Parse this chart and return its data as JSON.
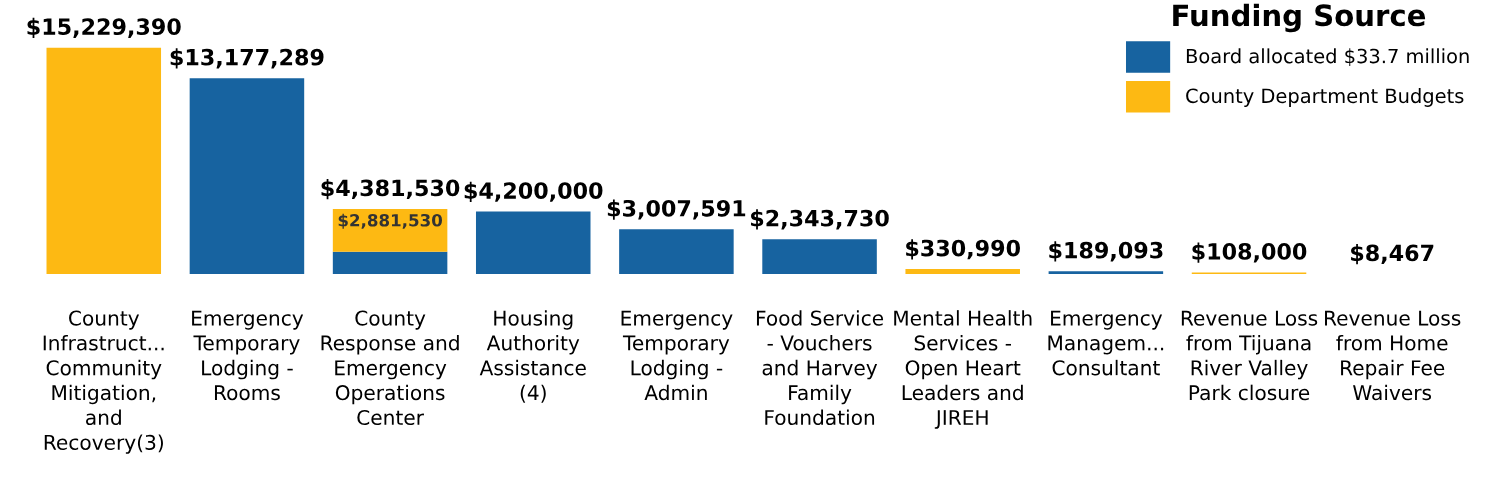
{
  "chart_data": {
    "type": "bar",
    "stacked": true,
    "legend": "top right",
    "legend_title": "Funding Source",
    "grid": false,
    "categories": [
      "County Infrastruct... Community Mitigation, and Recovery(3)",
      "Emergency Temporary Lodging - Rooms",
      "County Response and Emergency Operations Center",
      "Housing Authority Assistance (4)",
      "Emergency Temporary Lodging - Admin",
      "Food Service - Vouchers and Harvey Family Foundation",
      "Mental Health Services - Open Heart Leaders and JIREH",
      "Emergency Managem... Consultant",
      "Revenue Loss from Tijuana River Valley Park closure",
      "Revenue Loss from Home Repair Fee Waivers"
    ],
    "series": [
      {
        "name": "Board allocated $33.7 million",
        "color": "#1763a0",
        "values": [
          null,
          13177289,
          1500000,
          4200000,
          3007591,
          2343730,
          null,
          189093,
          null,
          8467
        ]
      },
      {
        "name": "County Department Budgets",
        "color": "#fdb913",
        "values": [
          15229390,
          null,
          2881530,
          null,
          null,
          null,
          330990,
          null,
          108000,
          null
        ],
        "value_labels": [
          null,
          null,
          "$2,881,530",
          null,
          null,
          null,
          null,
          null,
          null,
          null
        ]
      }
    ],
    "totals": [
      "$15,229,390",
      "$13,177,289",
      "$4,381,530",
      "$4,200,000",
      "$3,007,591",
      "$2,343,730",
      "$330,990",
      "$189,093",
      "$108,000",
      "$8,467"
    ]
  }
}
